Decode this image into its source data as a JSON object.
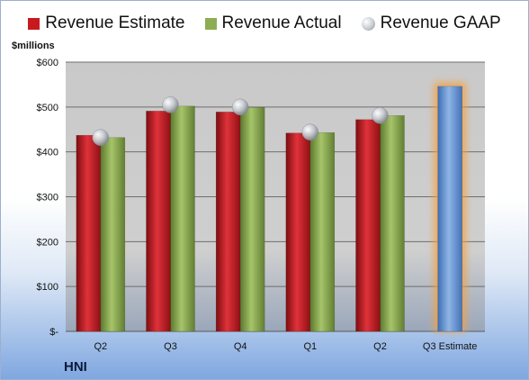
{
  "chart_data": {
    "type": "bar",
    "title": "",
    "ylabel": "$millions",
    "xlabel": "",
    "ylim": [
      0,
      600
    ],
    "yticks": [
      {
        "value": 0,
        "label": "$-"
      },
      {
        "value": 100,
        "label": "$100"
      },
      {
        "value": 200,
        "label": "$200"
      },
      {
        "value": 300,
        "label": "$300"
      },
      {
        "value": 400,
        "label": "$400"
      },
      {
        "value": 500,
        "label": "$500"
      },
      {
        "value": 600,
        "label": "$600"
      }
    ],
    "categories": [
      "Q2",
      "Q3",
      "Q4",
      "Q1",
      "Q2",
      "Q3 Estimate"
    ],
    "legend_position": "top",
    "series": [
      {
        "name": "Revenue Estimate",
        "kind": "bar",
        "color": "#c8191f",
        "values": [
          437,
          491,
          489,
          442,
          472,
          null
        ]
      },
      {
        "name": "Revenue Actual",
        "kind": "bar",
        "color": "#8cad52",
        "values": [
          432,
          502,
          499,
          443,
          481,
          null
        ]
      },
      {
        "name": "Revenue GAAP",
        "kind": "marker",
        "color": "#c0c4ca",
        "values": [
          432,
          505,
          500,
          444,
          481,
          null
        ]
      }
    ],
    "forecast_bar": {
      "category_index": 5,
      "value": 546,
      "color": "#6f9ad6",
      "glow": "#f5a040"
    },
    "company": "HNI"
  }
}
